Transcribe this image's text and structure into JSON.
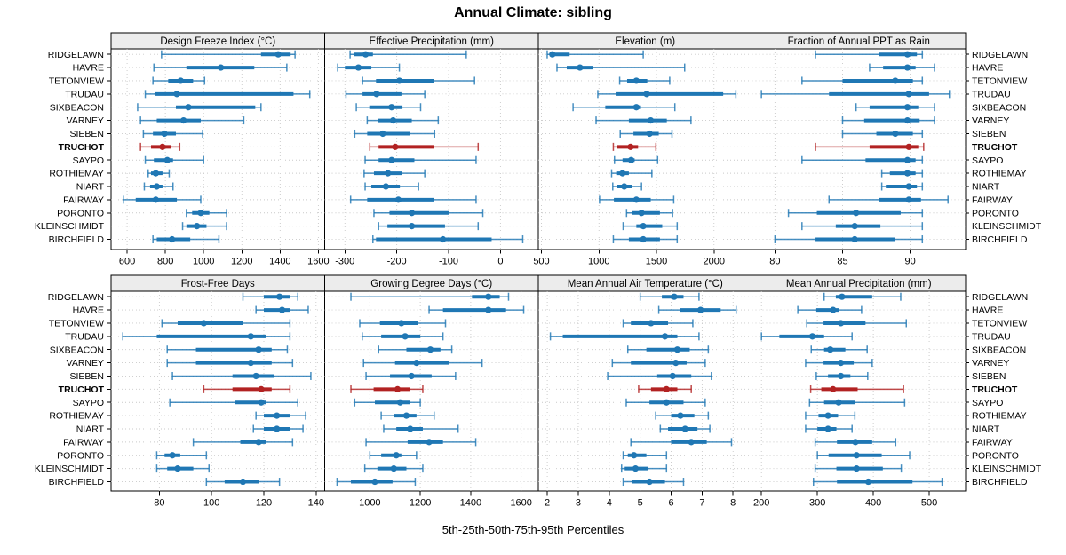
{
  "chart_data": {
    "type": "scatter",
    "subtype": "percentile-interval-trellis-dotplot",
    "title": "Annual Climate: sibling",
    "caption": "5th-25th-50th-75th-95th Percentiles",
    "percentiles": [
      5,
      25,
      50,
      75,
      95
    ],
    "stations": [
      "RIDGELAWN",
      "HAVRE",
      "TETONVIEW",
      "TRUDAU",
      "SIXBEACON",
      "VARNEY",
      "SIEBEN",
      "TRUCHOT",
      "SAYPO",
      "ROTHIEMAY",
      "NIART",
      "FAIRWAY",
      "PORONTO",
      "KLEINSCHMIDT",
      "BIRCHFIELD"
    ],
    "highlighted_station": "TRUCHOT",
    "colors": {
      "series": "#1f77b4",
      "highlight": "#b22222",
      "strip_bg": "#ececec",
      "panel_border": "#000000",
      "grid": "#c9c9c9",
      "text": "#000000"
    },
    "layout": {
      "rows": 2,
      "cols": 4,
      "grid": "dotted",
      "legend": "none",
      "station_labels": "both-sides"
    },
    "panels": [
      {
        "label": "Design Freeze Index (°C)",
        "ticks": [
          600,
          800,
          1000,
          1200,
          1400,
          1600
        ],
        "xlim": [
          516,
          1633
        ],
        "values": [
          [
            780,
            1300,
            1390,
            1455,
            1478
          ],
          [
            740,
            910,
            1090,
            1265,
            1435
          ],
          [
            735,
            815,
            880,
            945,
            1005
          ],
          [
            695,
            745,
            860,
            1470,
            1555
          ],
          [
            655,
            855,
            920,
            1270,
            1300
          ],
          [
            670,
            755,
            895,
            985,
            1210
          ],
          [
            685,
            735,
            795,
            855,
            995
          ],
          [
            670,
            725,
            785,
            830,
            875
          ],
          [
            695,
            740,
            810,
            840,
            1000
          ],
          [
            710,
            725,
            750,
            785,
            820
          ],
          [
            690,
            720,
            755,
            785,
            840
          ],
          [
            580,
            645,
            750,
            860,
            985
          ],
          [
            910,
            940,
            985,
            1030,
            1120
          ],
          [
            890,
            910,
            965,
            1015,
            1120
          ],
          [
            735,
            755,
            835,
            930,
            1080
          ]
        ]
      },
      {
        "label": "Effective Precipitation (mm)",
        "ticks": [
          -300,
          -200,
          -100,
          0
        ],
        "xlim": [
          -339,
          73
        ],
        "values": [
          [
            -290,
            -282,
            -260,
            -246,
            -66
          ],
          [
            -314,
            -300,
            -274,
            -249,
            -195
          ],
          [
            -266,
            -240,
            -195,
            -129,
            -50
          ],
          [
            -298,
            -266,
            -239,
            -191,
            -146
          ],
          [
            -278,
            -253,
            -210,
            -189,
            -154
          ],
          [
            -257,
            -237,
            -207,
            -171,
            -120
          ],
          [
            -281,
            -257,
            -227,
            -175,
            -127
          ],
          [
            -252,
            -235,
            -203,
            -129,
            -43
          ],
          [
            -261,
            -235,
            -210,
            -166,
            -47
          ],
          [
            -263,
            -244,
            -217,
            -190,
            -146
          ],
          [
            -261,
            -249,
            -221,
            -194,
            -158
          ],
          [
            -289,
            -257,
            -197,
            -129,
            -47
          ],
          [
            -244,
            -214,
            -171,
            -100,
            -34
          ],
          [
            -235,
            -218,
            -171,
            -107,
            -43
          ],
          [
            -246,
            -240,
            -111,
            -17,
            43
          ]
        ]
      },
      {
        "label": "Elevation (m)",
        "ticks": [
          500,
          1000,
          1500,
          2000
        ],
        "xlim": [
          473,
          2330
        ],
        "values": [
          [
            550,
            570,
            595,
            745,
            1385
          ],
          [
            635,
            720,
            835,
            950,
            1745
          ],
          [
            1180,
            1245,
            1325,
            1420,
            1615
          ],
          [
            990,
            1145,
            1415,
            2080,
            2190
          ],
          [
            775,
            1055,
            1325,
            1365,
            1660
          ],
          [
            975,
            1260,
            1450,
            1590,
            1800
          ],
          [
            1185,
            1300,
            1440,
            1520,
            1635
          ],
          [
            1125,
            1160,
            1275,
            1340,
            1495
          ],
          [
            1135,
            1205,
            1280,
            1310,
            1510
          ],
          [
            1110,
            1150,
            1205,
            1260,
            1460
          ],
          [
            1120,
            1160,
            1220,
            1290,
            1370
          ],
          [
            1005,
            1130,
            1325,
            1450,
            1650
          ],
          [
            1240,
            1290,
            1370,
            1530,
            1640
          ],
          [
            1210,
            1325,
            1385,
            1550,
            1680
          ],
          [
            1125,
            1260,
            1385,
            1530,
            1680
          ]
        ]
      },
      {
        "label": "Fraction of Annual PPT as Rain",
        "ticks": [
          80,
          85,
          90
        ],
        "xlim": [
          78.3,
          94.1
        ],
        "values": [
          [
            83,
            87.7,
            89.8,
            90.5,
            90.9
          ],
          [
            87,
            88,
            89.8,
            90.4,
            91.8
          ],
          [
            82,
            85,
            88.9,
            90.2,
            90.9
          ],
          [
            79,
            84,
            89.9,
            91.4,
            92.9
          ],
          [
            86,
            87,
            89.8,
            90.6,
            91.8
          ],
          [
            85,
            86.6,
            89.8,
            90.7,
            91.8
          ],
          [
            85,
            87.5,
            88.9,
            90.2,
            90.9
          ],
          [
            83,
            87,
            89.9,
            90.6,
            91
          ],
          [
            82,
            86.7,
            89.8,
            90.4,
            90.9
          ],
          [
            87.9,
            88.5,
            89.8,
            90.4,
            90.9
          ],
          [
            87.9,
            88.2,
            89.9,
            90.5,
            90.9
          ],
          [
            84,
            87.7,
            89.9,
            90.8,
            92.8
          ],
          [
            81,
            83.1,
            86,
            89.3,
            90.9
          ],
          [
            82,
            84.5,
            85.9,
            87.8,
            90.9
          ],
          [
            80,
            83,
            85.9,
            88.9,
            90.9
          ]
        ]
      },
      {
        "label": "Frost-Free Days",
        "ticks": [
          80,
          100,
          120,
          140
        ],
        "xlim": [
          61.5,
          143.3
        ],
        "values": [
          [
            112,
            120,
            126,
            130,
            133
          ],
          [
            117,
            120,
            127,
            130,
            137
          ],
          [
            81,
            87,
            97,
            112,
            130
          ],
          [
            66,
            79,
            115,
            121,
            130
          ],
          [
            83,
            94,
            118,
            123,
            129
          ],
          [
            83,
            94,
            115,
            123,
            131
          ],
          [
            85,
            108,
            117,
            124,
            138
          ],
          [
            97,
            108,
            119,
            123,
            130
          ],
          [
            84,
            109,
            119,
            121,
            133
          ],
          [
            117,
            120,
            125,
            130,
            136
          ],
          [
            116,
            120,
            125,
            130,
            135
          ],
          [
            93,
            111,
            118,
            121,
            131
          ],
          [
            79,
            82,
            85,
            88,
            98
          ],
          [
            79,
            83,
            87,
            93,
            99
          ],
          [
            98,
            105,
            112,
            118,
            126
          ]
        ]
      },
      {
        "label": "Growing Degree Days (°C)",
        "ticks": [
          1000,
          1200,
          1400,
          1600
        ],
        "xlim": [
          821,
          1668
        ],
        "values": [
          [
            925,
            1405,
            1470,
            1515,
            1550
          ],
          [
            1235,
            1290,
            1470,
            1540,
            1610
          ],
          [
            960,
            1040,
            1125,
            1190,
            1300
          ],
          [
            970,
            1045,
            1140,
            1200,
            1290
          ],
          [
            1035,
            1145,
            1240,
            1280,
            1325
          ],
          [
            975,
            1100,
            1185,
            1315,
            1445
          ],
          [
            985,
            1080,
            1165,
            1245,
            1340
          ],
          [
            925,
            1015,
            1110,
            1160,
            1210
          ],
          [
            940,
            1020,
            1120,
            1160,
            1200
          ],
          [
            1045,
            1095,
            1145,
            1185,
            1255
          ],
          [
            1055,
            1105,
            1160,
            1210,
            1350
          ],
          [
            985,
            1150,
            1235,
            1290,
            1420
          ],
          [
            1000,
            1045,
            1105,
            1125,
            1185
          ],
          [
            980,
            1030,
            1095,
            1145,
            1210
          ],
          [
            870,
            925,
            1020,
            1090,
            1180
          ]
        ]
      },
      {
        "label": "Mean Annual Air Temperature (°C)",
        "ticks": [
          2,
          3,
          4,
          5,
          6,
          7,
          8
        ],
        "xlim": [
          1.71,
          8.61
        ],
        "values": [
          [
            5.0,
            5.7,
            6.1,
            6.4,
            6.9
          ],
          [
            5.6,
            6.3,
            6.95,
            7.6,
            8.1
          ],
          [
            4.45,
            4.7,
            5.35,
            5.9,
            6.7
          ],
          [
            2.1,
            2.5,
            5.8,
            6.2,
            6.9
          ],
          [
            4.6,
            5.2,
            6.2,
            6.6,
            7.2
          ],
          [
            4.1,
            4.7,
            6.15,
            6.5,
            7.1
          ],
          [
            3.95,
            5.55,
            6.05,
            6.65,
            7.3
          ],
          [
            4.95,
            5.35,
            5.85,
            6.2,
            6.65
          ],
          [
            4.55,
            5.3,
            5.85,
            6.4,
            7.1
          ],
          [
            5.5,
            6.0,
            6.3,
            6.75,
            7.2
          ],
          [
            5.65,
            5.9,
            6.45,
            6.85,
            7.25
          ],
          [
            4.7,
            6.0,
            6.65,
            7.15,
            7.95
          ],
          [
            4.45,
            4.6,
            4.8,
            5.2,
            5.85
          ],
          [
            4.4,
            4.5,
            4.85,
            5.25,
            5.85
          ],
          [
            4.45,
            4.75,
            5.3,
            5.8,
            6.4
          ]
        ]
      },
      {
        "label": "Mean Annual Precipitation (mm)",
        "ticks": [
          200,
          300,
          400,
          500
        ],
        "xlim": [
          183,
          565
        ],
        "values": [
          [
            312,
            333,
            344,
            398,
            449
          ],
          [
            265,
            298,
            328,
            338,
            379
          ],
          [
            281,
            311,
            342,
            386,
            459
          ],
          [
            200,
            232,
            291,
            312,
            362
          ],
          [
            289,
            312,
            323,
            350,
            389
          ],
          [
            279,
            311,
            342,
            365,
            398
          ],
          [
            298,
            319,
            342,
            359,
            390
          ],
          [
            288,
            307,
            328,
            372,
            454
          ],
          [
            286,
            312,
            338,
            367,
            456
          ],
          [
            279,
            302,
            319,
            337,
            367
          ],
          [
            279,
            300,
            319,
            334,
            362
          ],
          [
            296,
            335,
            368,
            398,
            440
          ],
          [
            300,
            320,
            370,
            415,
            465
          ],
          [
            296,
            334,
            370,
            417,
            450
          ],
          [
            293,
            335,
            391,
            470,
            523
          ]
        ]
      }
    ]
  }
}
